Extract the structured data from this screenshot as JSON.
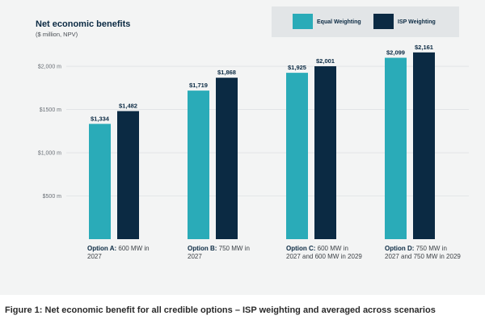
{
  "chart_data": {
    "type": "bar",
    "title": "Net economic benefits",
    "subtitle": "($ million, NPV)",
    "ylim": [
      0,
      2300
    ],
    "yticks": [
      {
        "value": 500,
        "label": "$500 m"
      },
      {
        "value": 1000,
        "label": "$1,000 m"
      },
      {
        "value": 1500,
        "label": "$1500 m"
      },
      {
        "value": 2000,
        "label": "$2,000 m"
      }
    ],
    "grid": true,
    "legend_position": "top-right",
    "categories": [
      {
        "bold": "Option A:",
        "rest": " 600 MW in 2027"
      },
      {
        "bold": "Option B:",
        "rest": " 750 MW in 2027"
      },
      {
        "bold": "Option C:",
        "rest": " 600 MW in 2027 and 600 MW in 2029"
      },
      {
        "bold": "Option D:",
        "rest": " 750 MW in 2027 and 750 MW in 2029"
      }
    ],
    "series": [
      {
        "name": "Equal Weighting",
        "color": "#2aabb8",
        "values": [
          1334,
          1719,
          1925,
          2099
        ],
        "labels": [
          "$1,334",
          "$1,719",
          "$1,925",
          "$2,099"
        ]
      },
      {
        "name": "ISP Weighting",
        "color": "#0b2a43",
        "values": [
          1482,
          1868,
          2001,
          2161
        ],
        "labels": [
          "$1,482",
          "$1,868",
          "$2,001",
          "$2,161"
        ]
      }
    ]
  },
  "caption": "Figure 1: Net economic benefit for all credible options – ISP weighting and averaged across scenarios"
}
